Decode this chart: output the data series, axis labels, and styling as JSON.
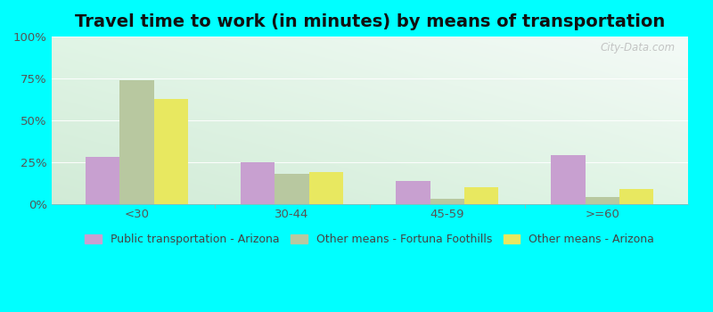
{
  "title": "Travel time to work (in minutes) by means of transportation",
  "categories": [
    "<30",
    "30-44",
    "45-59",
    ">=60"
  ],
  "series": {
    "Public transportation - Arizona": [
      28,
      25,
      14,
      29
    ],
    "Other means - Fortuna Foothills": [
      74,
      18,
      3,
      4
    ],
    "Other means - Arizona": [
      63,
      19,
      10,
      9
    ]
  },
  "colors": {
    "Public transportation - Arizona": "#c8a0d0",
    "Other means - Fortuna Foothills": "#b8c8a0",
    "Other means - Arizona": "#e8e860"
  },
  "ylim": [
    0,
    100
  ],
  "yticks": [
    0,
    25,
    50,
    75,
    100
  ],
  "ytick_labels": [
    "0%",
    "25%",
    "50%",
    "75%",
    "100%"
  ],
  "background_color": "#00ffff",
  "bar_width": 0.22,
  "title_fontsize": 14,
  "legend_fontsize": 9,
  "watermark": "City-Data.com"
}
